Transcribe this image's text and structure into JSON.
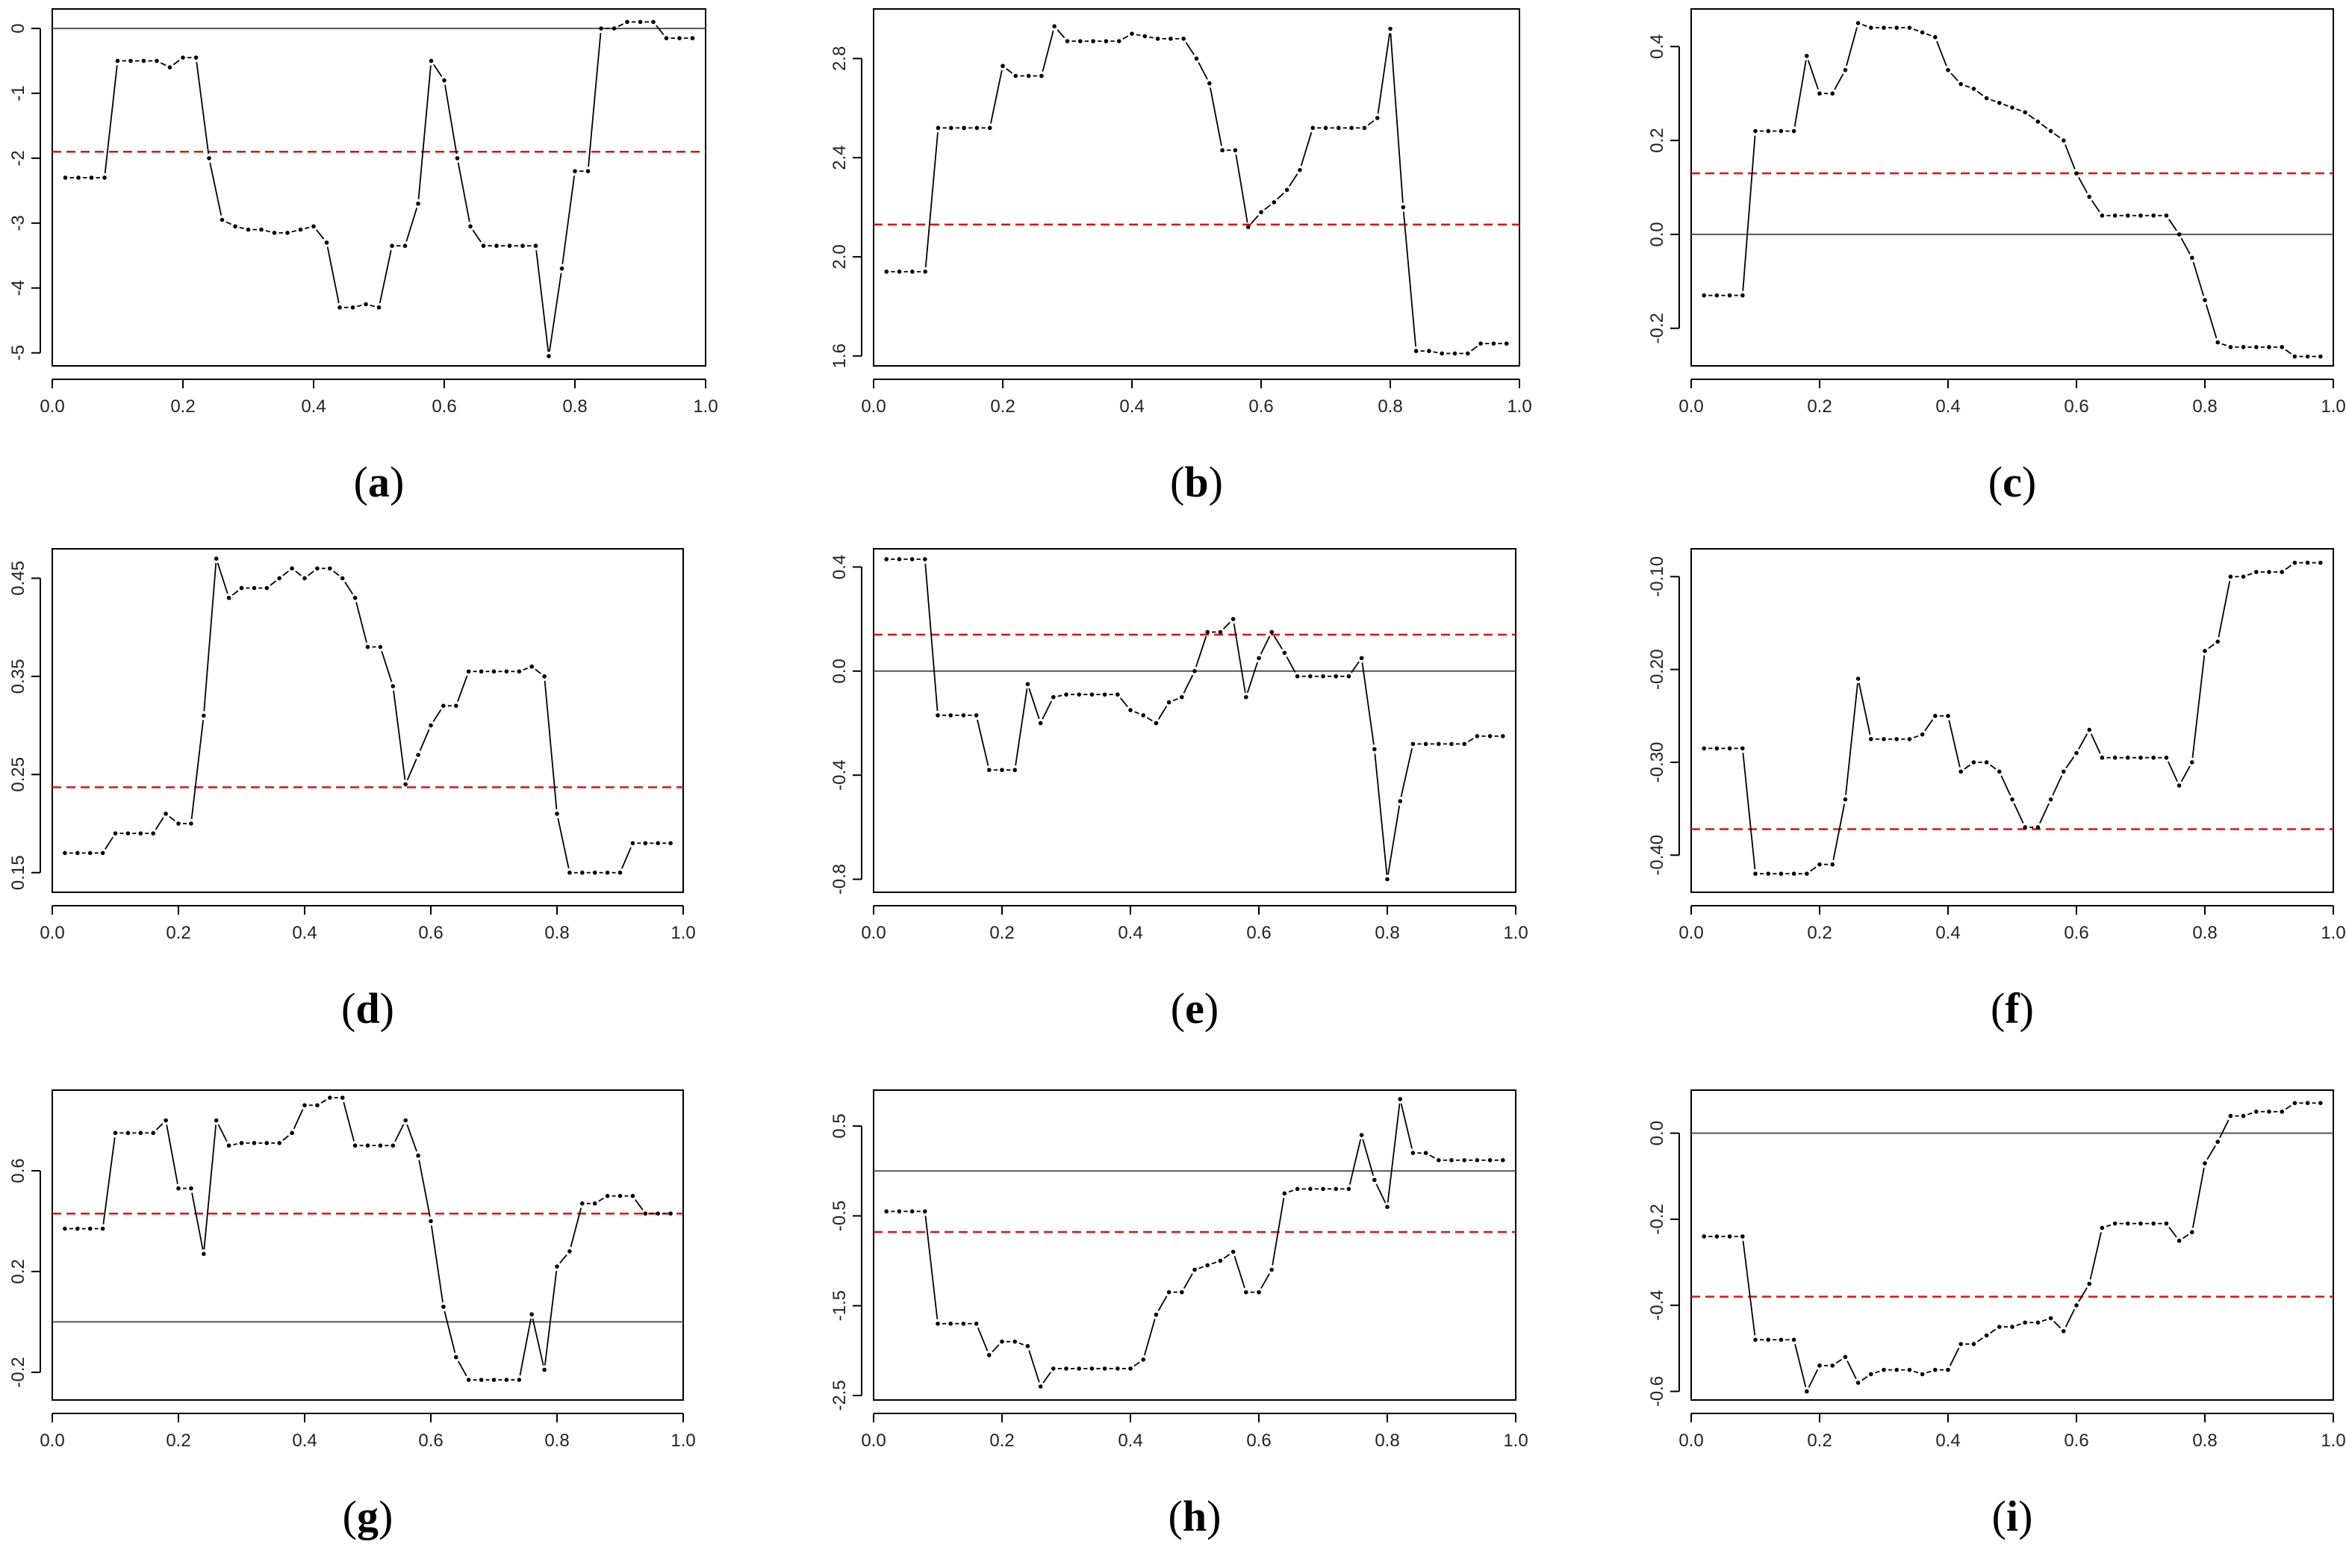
{
  "figure": {
    "panel_count": 9,
    "colors": {
      "series": "#000000",
      "mean_line": "#e01010",
      "zero_line": "#555555",
      "frame": "#000000"
    }
  },
  "chart_data": [
    {
      "id": "a",
      "type": "line",
      "caption": "(a)",
      "caption_letter": "a",
      "x": [
        0.02,
        0.04,
        0.06,
        0.08,
        0.1,
        0.12,
        0.14,
        0.16,
        0.18,
        0.2,
        0.22,
        0.24,
        0.26,
        0.28,
        0.3,
        0.32,
        0.34,
        0.36,
        0.38,
        0.4,
        0.42,
        0.44,
        0.46,
        0.48,
        0.5,
        0.52,
        0.54,
        0.56,
        0.58,
        0.6,
        0.62,
        0.64,
        0.66,
        0.68,
        0.7,
        0.72,
        0.74,
        0.76,
        0.78,
        0.8,
        0.82,
        0.84,
        0.86,
        0.88,
        0.9,
        0.92,
        0.94,
        0.96,
        0.98
      ],
      "y": [
        -2.3,
        -2.3,
        -2.3,
        -2.3,
        -0.5,
        -0.5,
        -0.5,
        -0.5,
        -0.6,
        -0.45,
        -0.45,
        -2.0,
        -2.95,
        -3.05,
        -3.1,
        -3.1,
        -3.15,
        -3.15,
        -3.1,
        -3.05,
        -3.3,
        -4.3,
        -4.3,
        -4.25,
        -4.3,
        -3.35,
        -3.35,
        -2.7,
        -0.5,
        -0.8,
        -2.0,
        -3.05,
        -3.35,
        -3.35,
        -3.35,
        -3.35,
        -3.35,
        -5.05,
        -3.7,
        -2.2,
        -2.2,
        0.0,
        0.0,
        0.1,
        0.1,
        0.1,
        -0.15,
        -0.15,
        -0.15
      ],
      "mean": -1.9,
      "zero_line": 0,
      "xlim": [
        0,
        1.0
      ],
      "ylim": [
        -5.2,
        0.3
      ],
      "xticks": [
        0.0,
        0.2,
        0.4,
        0.6,
        0.8,
        1.0
      ],
      "xtick_labels": [
        "0.0",
        "0.2",
        "0.4",
        "0.6",
        "0.8",
        "1.0"
      ],
      "yticks": [
        0,
        -1,
        -2,
        -3,
        -4,
        -5
      ],
      "ytick_labels": [
        "0",
        "-1",
        "-2",
        "-3",
        "-4",
        "-5"
      ]
    },
    {
      "id": "b",
      "type": "line",
      "caption": "(b)",
      "caption_letter": "b",
      "x": [
        0.02,
        0.04,
        0.06,
        0.08,
        0.1,
        0.12,
        0.14,
        0.16,
        0.18,
        0.2,
        0.22,
        0.24,
        0.26,
        0.28,
        0.3,
        0.32,
        0.34,
        0.36,
        0.38,
        0.4,
        0.42,
        0.44,
        0.46,
        0.48,
        0.5,
        0.52,
        0.54,
        0.56,
        0.58,
        0.6,
        0.62,
        0.64,
        0.66,
        0.68,
        0.7,
        0.72,
        0.74,
        0.76,
        0.78,
        0.8,
        0.82,
        0.84,
        0.86,
        0.88,
        0.9,
        0.92,
        0.94,
        0.96,
        0.98
      ],
      "y": [
        1.94,
        1.94,
        1.94,
        1.94,
        2.52,
        2.52,
        2.52,
        2.52,
        2.52,
        2.77,
        2.73,
        2.73,
        2.73,
        2.93,
        2.87,
        2.87,
        2.87,
        2.87,
        2.87,
        2.9,
        2.89,
        2.88,
        2.88,
        2.88,
        2.8,
        2.7,
        2.43,
        2.43,
        2.12,
        2.18,
        2.22,
        2.27,
        2.35,
        2.52,
        2.52,
        2.52,
        2.52,
        2.52,
        2.56,
        2.92,
        2.2,
        1.62,
        1.62,
        1.61,
        1.61,
        1.61,
        1.65,
        1.65,
        1.65
      ],
      "mean": 2.13,
      "xlim": [
        0,
        1.0
      ],
      "ylim": [
        1.56,
        3.0
      ],
      "xticks": [
        0.0,
        0.2,
        0.4,
        0.6,
        0.8,
        1.0
      ],
      "xtick_labels": [
        "0.0",
        "0.2",
        "0.4",
        "0.6",
        "0.8",
        "1.0"
      ],
      "yticks": [
        1.6,
        2.0,
        2.4,
        2.8
      ],
      "ytick_labels": [
        "1.6",
        "2.0",
        "2.4",
        "2.8"
      ]
    },
    {
      "id": "c",
      "type": "line",
      "caption": "(c)",
      "caption_letter": "c",
      "x": [
        0.02,
        0.04,
        0.06,
        0.08,
        0.1,
        0.12,
        0.14,
        0.16,
        0.18,
        0.2,
        0.22,
        0.24,
        0.26,
        0.28,
        0.3,
        0.32,
        0.34,
        0.36,
        0.38,
        0.4,
        0.42,
        0.44,
        0.46,
        0.48,
        0.5,
        0.52,
        0.54,
        0.56,
        0.58,
        0.6,
        0.62,
        0.64,
        0.66,
        0.68,
        0.7,
        0.72,
        0.74,
        0.76,
        0.78,
        0.8,
        0.82,
        0.84,
        0.86,
        0.88,
        0.9,
        0.92,
        0.94,
        0.96,
        0.98
      ],
      "y": [
        -0.13,
        -0.13,
        -0.13,
        -0.13,
        0.22,
        0.22,
        0.22,
        0.22,
        0.38,
        0.3,
        0.3,
        0.35,
        0.45,
        0.44,
        0.44,
        0.44,
        0.44,
        0.43,
        0.42,
        0.35,
        0.32,
        0.31,
        0.29,
        0.28,
        0.27,
        0.26,
        0.24,
        0.22,
        0.2,
        0.13,
        0.08,
        0.04,
        0.04,
        0.04,
        0.04,
        0.04,
        0.04,
        0.0,
        -0.05,
        -0.14,
        -0.23,
        -0.24,
        -0.24,
        -0.24,
        -0.24,
        -0.24,
        -0.26,
        -0.26,
        -0.26
      ],
      "mean": 0.13,
      "zero_line": 0,
      "xlim": [
        0,
        1.0
      ],
      "ylim": [
        -0.28,
        0.48
      ],
      "xticks": [
        0.0,
        0.2,
        0.4,
        0.6,
        0.8,
        1.0
      ],
      "xtick_labels": [
        "0.0",
        "0.2",
        "0.4",
        "0.6",
        "0.8",
        "1.0"
      ],
      "yticks": [
        -0.2,
        0.0,
        0.2,
        0.4
      ],
      "ytick_labels": [
        "-0.2",
        "0.0",
        "0.2",
        "0.4"
      ]
    },
    {
      "id": "d",
      "type": "line",
      "caption": "(d)",
      "caption_letter": "d",
      "x": [
        0.02,
        0.04,
        0.06,
        0.08,
        0.1,
        0.12,
        0.14,
        0.16,
        0.18,
        0.2,
        0.22,
        0.24,
        0.26,
        0.28,
        0.3,
        0.32,
        0.34,
        0.36,
        0.38,
        0.4,
        0.42,
        0.44,
        0.46,
        0.48,
        0.5,
        0.52,
        0.54,
        0.56,
        0.58,
        0.6,
        0.62,
        0.64,
        0.66,
        0.68,
        0.7,
        0.72,
        0.74,
        0.76,
        0.78,
        0.8,
        0.82,
        0.84,
        0.86,
        0.88,
        0.9,
        0.92,
        0.94,
        0.96,
        0.98
      ],
      "y": [
        0.17,
        0.17,
        0.17,
        0.17,
        0.19,
        0.19,
        0.19,
        0.19,
        0.21,
        0.2,
        0.2,
        0.31,
        0.47,
        0.43,
        0.44,
        0.44,
        0.44,
        0.45,
        0.46,
        0.45,
        0.46,
        0.46,
        0.45,
        0.43,
        0.38,
        0.38,
        0.34,
        0.24,
        0.27,
        0.3,
        0.32,
        0.32,
        0.355,
        0.355,
        0.355,
        0.355,
        0.355,
        0.36,
        0.35,
        0.21,
        0.15,
        0.15,
        0.15,
        0.15,
        0.15,
        0.18,
        0.18,
        0.18,
        0.18
      ],
      "mean": 0.237,
      "xlim": [
        0,
        1.0
      ],
      "ylim": [
        0.13,
        0.48
      ],
      "xticks": [
        0.0,
        0.2,
        0.4,
        0.6,
        0.8,
        1.0
      ],
      "xtick_labels": [
        "0.0",
        "0.2",
        "0.4",
        "0.6",
        "0.8",
        "1.0"
      ],
      "yticks": [
        0.15,
        0.25,
        0.35,
        0.45
      ],
      "ytick_labels": [
        "0.15",
        "0.25",
        "0.35",
        "0.45"
      ]
    },
    {
      "id": "e",
      "type": "line",
      "caption": "(e)",
      "caption_letter": "e",
      "x": [
        0.02,
        0.04,
        0.06,
        0.08,
        0.1,
        0.12,
        0.14,
        0.16,
        0.18,
        0.2,
        0.22,
        0.24,
        0.26,
        0.28,
        0.3,
        0.32,
        0.34,
        0.36,
        0.38,
        0.4,
        0.42,
        0.44,
        0.46,
        0.48,
        0.5,
        0.52,
        0.54,
        0.56,
        0.58,
        0.6,
        0.62,
        0.64,
        0.66,
        0.68,
        0.7,
        0.72,
        0.74,
        0.76,
        0.78,
        0.8,
        0.82,
        0.84,
        0.86,
        0.88,
        0.9,
        0.92,
        0.94,
        0.96,
        0.98
      ],
      "y": [
        0.43,
        0.43,
        0.43,
        0.43,
        -0.17,
        -0.17,
        -0.17,
        -0.17,
        -0.38,
        -0.38,
        -0.38,
        -0.05,
        -0.2,
        -0.1,
        -0.09,
        -0.09,
        -0.09,
        -0.09,
        -0.09,
        -0.15,
        -0.17,
        -0.2,
        -0.12,
        -0.1,
        0.0,
        0.15,
        0.15,
        0.2,
        -0.1,
        0.05,
        0.15,
        0.07,
        -0.02,
        -0.02,
        -0.02,
        -0.02,
        -0.02,
        0.05,
        -0.3,
        -0.8,
        -0.5,
        -0.28,
        -0.28,
        -0.28,
        -0.28,
        -0.28,
        -0.25,
        -0.25,
        -0.25
      ],
      "mean": 0.14,
      "zero_line": 0,
      "xlim": [
        0,
        1.0
      ],
      "ylim": [
        -0.85,
        0.47
      ],
      "xticks": [
        0.0,
        0.2,
        0.4,
        0.6,
        0.8,
        1.0
      ],
      "xtick_labels": [
        "0.0",
        "0.2",
        "0.4",
        "0.6",
        "0.8",
        "1.0"
      ],
      "yticks": [
        -0.8,
        -0.4,
        0.0,
        0.4
      ],
      "ytick_labels": [
        "-0.8",
        "-0.4",
        "0.0",
        "0.4"
      ]
    },
    {
      "id": "f",
      "type": "line",
      "caption": "(f)",
      "caption_letter": "f",
      "x": [
        0.02,
        0.04,
        0.06,
        0.08,
        0.1,
        0.12,
        0.14,
        0.16,
        0.18,
        0.2,
        0.22,
        0.24,
        0.26,
        0.28,
        0.3,
        0.32,
        0.34,
        0.36,
        0.38,
        0.4,
        0.42,
        0.44,
        0.46,
        0.48,
        0.5,
        0.52,
        0.54,
        0.56,
        0.58,
        0.6,
        0.62,
        0.64,
        0.66,
        0.68,
        0.7,
        0.72,
        0.74,
        0.76,
        0.78,
        0.8,
        0.82,
        0.84,
        0.86,
        0.88,
        0.9,
        0.92,
        0.94,
        0.96,
        0.98
      ],
      "y": [
        -0.285,
        -0.285,
        -0.285,
        -0.285,
        -0.42,
        -0.42,
        -0.42,
        -0.42,
        -0.42,
        -0.41,
        -0.41,
        -0.34,
        -0.21,
        -0.275,
        -0.275,
        -0.275,
        -0.275,
        -0.27,
        -0.25,
        -0.25,
        -0.31,
        -0.3,
        -0.3,
        -0.31,
        -0.34,
        -0.37,
        -0.37,
        -0.34,
        -0.31,
        -0.29,
        -0.265,
        -0.295,
        -0.295,
        -0.295,
        -0.295,
        -0.295,
        -0.295,
        -0.325,
        -0.3,
        -0.18,
        -0.17,
        -0.1,
        -0.1,
        -0.095,
        -0.095,
        -0.095,
        -0.085,
        -0.085,
        -0.085
      ],
      "mean": -0.372,
      "xlim": [
        0,
        1.0
      ],
      "ylim": [
        -0.44,
        -0.07
      ],
      "xticks": [
        0.0,
        0.2,
        0.4,
        0.6,
        0.8,
        1.0
      ],
      "xtick_labels": [
        "0.0",
        "0.2",
        "0.4",
        "0.6",
        "0.8",
        "1.0"
      ],
      "yticks": [
        -0.4,
        -0.3,
        -0.2,
        -0.1
      ],
      "ytick_labels": [
        "-0.40",
        "-0.30",
        "-0.20",
        "-0.10"
      ]
    },
    {
      "id": "g",
      "type": "line",
      "caption": "(g)",
      "caption_letter": "g",
      "x": [
        0.02,
        0.04,
        0.06,
        0.08,
        0.1,
        0.12,
        0.14,
        0.16,
        0.18,
        0.2,
        0.22,
        0.24,
        0.26,
        0.28,
        0.3,
        0.32,
        0.34,
        0.36,
        0.38,
        0.4,
        0.42,
        0.44,
        0.46,
        0.48,
        0.5,
        0.52,
        0.54,
        0.56,
        0.58,
        0.6,
        0.62,
        0.64,
        0.66,
        0.68,
        0.7,
        0.72,
        0.74,
        0.76,
        0.78,
        0.8,
        0.82,
        0.84,
        0.86,
        0.88,
        0.9,
        0.92,
        0.94,
        0.96,
        0.98
      ],
      "y": [
        0.37,
        0.37,
        0.37,
        0.37,
        0.75,
        0.75,
        0.75,
        0.75,
        0.8,
        0.53,
        0.53,
        0.27,
        0.8,
        0.7,
        0.71,
        0.71,
        0.71,
        0.71,
        0.75,
        0.86,
        0.86,
        0.89,
        0.89,
        0.7,
        0.7,
        0.7,
        0.7,
        0.8,
        0.66,
        0.4,
        0.06,
        -0.14,
        -0.23,
        -0.23,
        -0.23,
        -0.23,
        -0.23,
        0.03,
        -0.19,
        0.22,
        0.28,
        0.47,
        0.47,
        0.5,
        0.5,
        0.5,
        0.43,
        0.43,
        0.43
      ],
      "mean": 0.43,
      "zero_line": 0,
      "xlim": [
        0,
        1.0
      ],
      "ylim": [
        -0.31,
        0.92
      ],
      "xticks": [
        0.0,
        0.2,
        0.4,
        0.6,
        0.8,
        1.0
      ],
      "xtick_labels": [
        "0.0",
        "0.2",
        "0.4",
        "0.6",
        "0.8",
        "1.0"
      ],
      "yticks": [
        -0.2,
        0.2,
        0.6
      ],
      "ytick_labels": [
        "-0.2",
        "0.2",
        "0.6"
      ]
    },
    {
      "id": "h",
      "type": "line",
      "caption": "(h)",
      "caption_letter": "h",
      "x": [
        0.02,
        0.04,
        0.06,
        0.08,
        0.1,
        0.12,
        0.14,
        0.16,
        0.18,
        0.2,
        0.22,
        0.24,
        0.26,
        0.28,
        0.3,
        0.32,
        0.34,
        0.36,
        0.38,
        0.4,
        0.42,
        0.44,
        0.46,
        0.48,
        0.5,
        0.52,
        0.54,
        0.56,
        0.58,
        0.6,
        0.62,
        0.64,
        0.66,
        0.68,
        0.7,
        0.72,
        0.74,
        0.76,
        0.78,
        0.8,
        0.82,
        0.84,
        0.86,
        0.88,
        0.9,
        0.92,
        0.94,
        0.96,
        0.98
      ],
      "y": [
        -0.45,
        -0.45,
        -0.45,
        -0.45,
        -1.7,
        -1.7,
        -1.7,
        -1.7,
        -2.05,
        -1.9,
        -1.9,
        -1.95,
        -2.4,
        -2.2,
        -2.2,
        -2.2,
        -2.2,
        -2.2,
        -2.2,
        -2.2,
        -2.1,
        -1.6,
        -1.35,
        -1.35,
        -1.1,
        -1.05,
        -1.0,
        -0.9,
        -1.35,
        -1.35,
        -1.1,
        -0.25,
        -0.2,
        -0.2,
        -0.2,
        -0.2,
        -0.2,
        0.4,
        -0.1,
        -0.4,
        0.8,
        0.2,
        0.2,
        0.12,
        0.12,
        0.12,
        0.12,
        0.12,
        0.12
      ],
      "mean": -0.68,
      "zero_line": 0,
      "xlim": [
        0,
        1.0
      ],
      "ylim": [
        -2.55,
        0.9
      ],
      "xticks": [
        0.0,
        0.2,
        0.4,
        0.6,
        0.8,
        1.0
      ],
      "xtick_labels": [
        "0.0",
        "0.2",
        "0.4",
        "0.6",
        "0.8",
        "1.0"
      ],
      "yticks": [
        -2.5,
        -1.5,
        -0.5,
        0.5
      ],
      "ytick_labels": [
        "-2.5",
        "-1.5",
        "-0.5",
        "0.5"
      ]
    },
    {
      "id": "i",
      "type": "line",
      "caption": "(i)",
      "caption_letter": "i",
      "x": [
        0.02,
        0.04,
        0.06,
        0.08,
        0.1,
        0.12,
        0.14,
        0.16,
        0.18,
        0.2,
        0.22,
        0.24,
        0.26,
        0.28,
        0.3,
        0.32,
        0.34,
        0.36,
        0.38,
        0.4,
        0.42,
        0.44,
        0.46,
        0.48,
        0.5,
        0.52,
        0.54,
        0.56,
        0.58,
        0.6,
        0.62,
        0.64,
        0.66,
        0.68,
        0.7,
        0.72,
        0.74,
        0.76,
        0.78,
        0.8,
        0.82,
        0.84,
        0.86,
        0.88,
        0.9,
        0.92,
        0.94,
        0.96,
        0.98
      ],
      "y": [
        -0.24,
        -0.24,
        -0.24,
        -0.24,
        -0.48,
        -0.48,
        -0.48,
        -0.48,
        -0.6,
        -0.54,
        -0.54,
        -0.52,
        -0.58,
        -0.56,
        -0.55,
        -0.55,
        -0.55,
        -0.56,
        -0.55,
        -0.55,
        -0.49,
        -0.49,
        -0.47,
        -0.45,
        -0.45,
        -0.44,
        -0.44,
        -0.43,
        -0.46,
        -0.4,
        -0.35,
        -0.22,
        -0.21,
        -0.21,
        -0.21,
        -0.21,
        -0.21,
        -0.25,
        -0.23,
        -0.07,
        -0.02,
        0.04,
        0.04,
        0.05,
        0.05,
        0.05,
        0.07,
        0.07,
        0.07
      ],
      "mean": -0.38,
      "zero_line": 0,
      "xlim": [
        0,
        1.0
      ],
      "ylim": [
        -0.62,
        0.1
      ],
      "xticks": [
        0.0,
        0.2,
        0.4,
        0.6,
        0.8,
        1.0
      ],
      "xtick_labels": [
        "0.0",
        "0.2",
        "0.4",
        "0.6",
        "0.8",
        "1.0"
      ],
      "yticks": [
        -0.6,
        -0.4,
        -0.2,
        0.0
      ],
      "ytick_labels": [
        "-0.6",
        "-0.4",
        "-0.2",
        "0.0"
      ]
    }
  ]
}
